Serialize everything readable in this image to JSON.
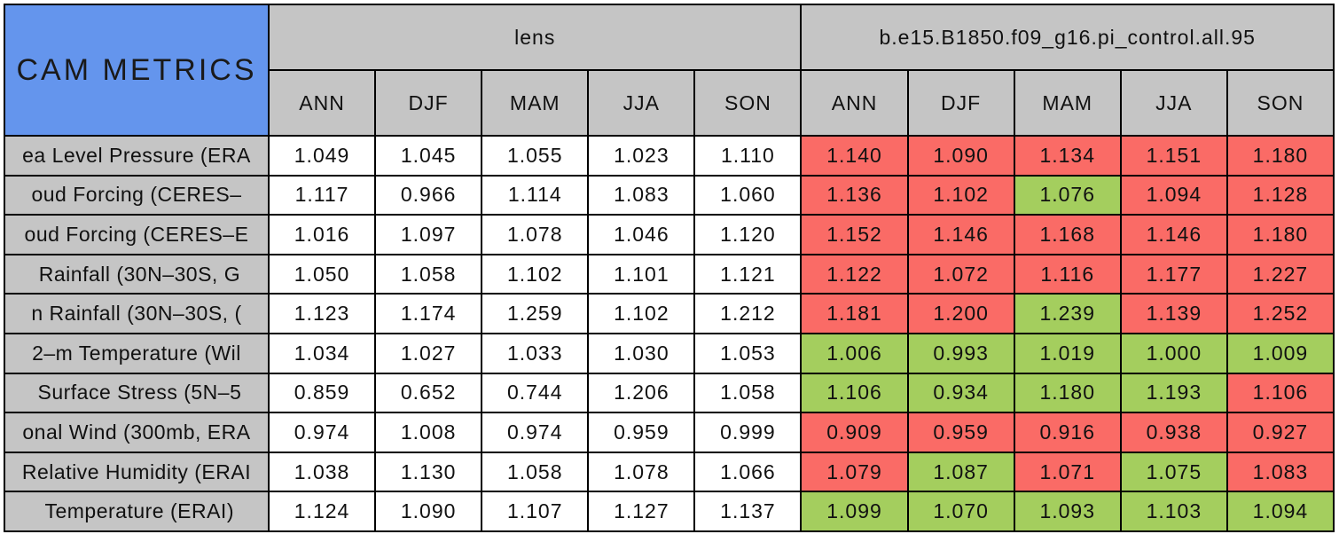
{
  "colors": {
    "header_blue": "#6495ED",
    "header_gray": "#C5C5C5",
    "cell_white": "#FFFFFF",
    "cell_red": "#FA6B66",
    "cell_green": "#A4CE5E",
    "grid_border": "#000000"
  },
  "chart_data": {
    "type": "table",
    "title": "CAM METRICS",
    "column_groups": [
      {
        "label": "lens"
      },
      {
        "label": "b.e15.B1850.f09_g16.pi_control.all.95"
      }
    ],
    "seasons": [
      "ANN",
      "DJF",
      "MAM",
      "JJA",
      "SON"
    ],
    "rows": [
      {
        "label": "ea Level Pressure (ERA",
        "lens": [
          "1.049",
          "1.045",
          "1.055",
          "1.023",
          "1.110"
        ],
        "control": [
          "1.140",
          "1.090",
          "1.134",
          "1.151",
          "1.180"
        ],
        "control_colors": [
          "red",
          "red",
          "red",
          "red",
          "red"
        ]
      },
      {
        "label": "oud Forcing (CERES–",
        "lens": [
          "1.117",
          "0.966",
          "1.114",
          "1.083",
          "1.060"
        ],
        "control": [
          "1.136",
          "1.102",
          "1.076",
          "1.094",
          "1.128"
        ],
        "control_colors": [
          "red",
          "red",
          "green",
          "red",
          "red"
        ]
      },
      {
        "label": "oud Forcing (CERES–E",
        "lens": [
          "1.016",
          "1.097",
          "1.078",
          "1.046",
          "1.120"
        ],
        "control": [
          "1.152",
          "1.146",
          "1.168",
          "1.146",
          "1.180"
        ],
        "control_colors": [
          "red",
          "red",
          "red",
          "red",
          "red"
        ]
      },
      {
        "label": " Rainfall (30N–30S, G",
        "lens": [
          "1.050",
          "1.058",
          "1.102",
          "1.101",
          "1.121"
        ],
        "control": [
          "1.122",
          "1.072",
          "1.116",
          "1.177",
          "1.227"
        ],
        "control_colors": [
          "red",
          "red",
          "red",
          "red",
          "red"
        ]
      },
      {
        "label": "n Rainfall (30N–30S, (",
        "lens": [
          "1.123",
          "1.174",
          "1.259",
          "1.102",
          "1.212"
        ],
        "control": [
          "1.181",
          "1.200",
          "1.239",
          "1.139",
          "1.252"
        ],
        "control_colors": [
          "red",
          "red",
          "green",
          "red",
          "red"
        ]
      },
      {
        "label": "2–m Temperature (Wil",
        "lens": [
          "1.034",
          "1.027",
          "1.033",
          "1.030",
          "1.053"
        ],
        "control": [
          "1.006",
          "0.993",
          "1.019",
          "1.000",
          "1.009"
        ],
        "control_colors": [
          "green",
          "green",
          "green",
          "green",
          "green"
        ]
      },
      {
        "label": " Surface Stress (5N–5",
        "lens": [
          "0.859",
          "0.652",
          "0.744",
          "1.206",
          "1.058"
        ],
        "control": [
          "1.106",
          "0.934",
          "1.180",
          "1.193",
          "1.106"
        ],
        "control_colors": [
          "green",
          "green",
          "green",
          "green",
          "red"
        ]
      },
      {
        "label": "onal Wind (300mb, ERA",
        "lens": [
          "0.974",
          "1.008",
          "0.974",
          "0.959",
          "0.999"
        ],
        "control": [
          "0.909",
          "0.959",
          "0.916",
          "0.938",
          "0.927"
        ],
        "control_colors": [
          "red",
          "red",
          "red",
          "red",
          "red"
        ]
      },
      {
        "label": "Relative Humidity (ERAI",
        "lens": [
          "1.038",
          "1.130",
          "1.058",
          "1.078",
          "1.066"
        ],
        "control": [
          "1.079",
          "1.087",
          "1.071",
          "1.075",
          "1.083"
        ],
        "control_colors": [
          "red",
          "green",
          "red",
          "green",
          "red"
        ]
      },
      {
        "label": " Temperature (ERAI)",
        "lens": [
          "1.124",
          "1.090",
          "1.107",
          "1.127",
          "1.137"
        ],
        "control": [
          "1.099",
          "1.070",
          "1.093",
          "1.103",
          "1.094"
        ],
        "control_colors": [
          "green",
          "green",
          "green",
          "green",
          "green"
        ]
      }
    ]
  }
}
